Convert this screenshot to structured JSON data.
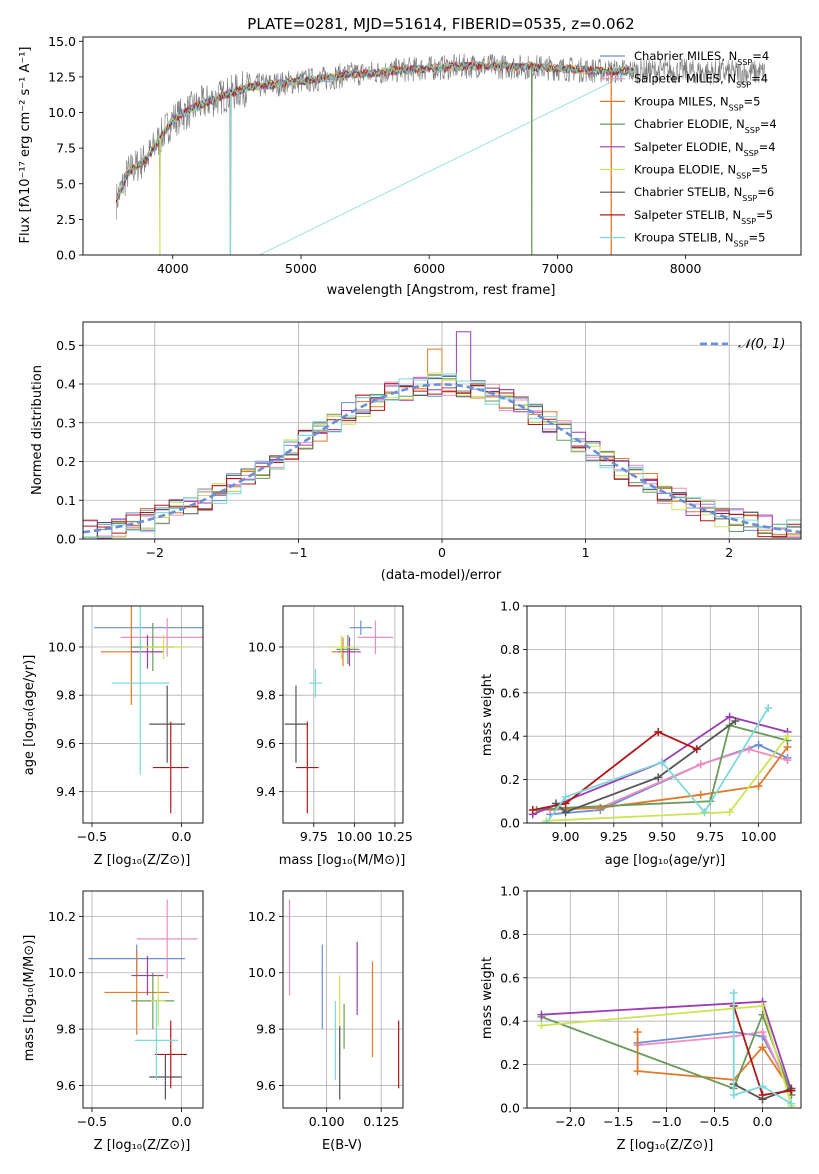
{
  "colors": [
    "#6b8fd6",
    "#f08cc0",
    "#e07a2a",
    "#6b9b5a",
    "#9b3db5",
    "#cce455",
    "#555555",
    "#b01818",
    "#7ed9db"
  ],
  "chart_data": [
    {
      "id": "spectrum",
      "type": "line",
      "title": "PLATE=0281, MJD=51614, FIBERID=0535, z=0.062",
      "xlabel": "wavelength [Angstrom, rest frame]",
      "ylabel": "Flux [fλ10⁻¹⁷ erg cm⁻² s⁻¹ A⁻¹]",
      "xlim": [
        3300,
        8900
      ],
      "ylim": [
        0,
        15.3
      ],
      "xticks": [
        "4000",
        "5000",
        "6000",
        "7000",
        "8000"
      ],
      "yticks": [
        "0.0",
        "2.5",
        "5.0",
        "7.5",
        "10.0",
        "12.5",
        "15.0"
      ],
      "legend_position": "right",
      "legend": [
        {
          "name": "Chabrier MILES",
          "nssp": "4"
        },
        {
          "name": "Salpeter MILES",
          "nssp": "4"
        },
        {
          "name": "Kroupa MILES",
          "nssp": "5"
        },
        {
          "name": "Chabrier ELODIE",
          "nssp": "4"
        },
        {
          "name": "Salpeter ELODIE",
          "nssp": "4"
        },
        {
          "name": "Kroupa ELODIE",
          "nssp": "5"
        },
        {
          "name": "Chabrier STELIB",
          "nssp": "6"
        },
        {
          "name": "Salpeter STELIB",
          "nssp": "5"
        },
        {
          "name": "Kroupa STELIB",
          "nssp": "5"
        }
      ],
      "data_envelope": {
        "x": [
          3560,
          3650,
          3800,
          3900,
          4000,
          4200,
          4400,
          4600,
          4800,
          5000,
          5200,
          5400,
          5600,
          5800,
          6000,
          6200,
          6400,
          6600,
          6800,
          7000,
          7200,
          7400,
          7600,
          7800,
          8000,
          8200,
          8400,
          8600
        ],
        "y": [
          3.8,
          5.8,
          6.8,
          8.2,
          9.5,
          10.5,
          11.2,
          11.8,
          12.0,
          12.2,
          12.4,
          12.7,
          12.8,
          13.0,
          13.1,
          13.2,
          13.3,
          13.2,
          13.2,
          13.1,
          13.0,
          12.9,
          12.9,
          12.9,
          12.9,
          12.8,
          12.8,
          12.8
        ]
      },
      "gray_spectrum_cut": [
        3900,
        4450,
        6800,
        7420
      ],
      "model_start_x": 3560
    },
    {
      "id": "residuals",
      "type": "histogram",
      "xlabel": "(data-model)/error",
      "ylabel": "Normed distribution",
      "xlim": [
        -2.5,
        2.5
      ],
      "ylim": [
        0,
        0.56
      ],
      "xticks": [
        "−2",
        "−1",
        "0",
        "1",
        "2"
      ],
      "yticks": [
        "0.0",
        "0.1",
        "0.2",
        "0.3",
        "0.4",
        "0.5"
      ],
      "legend_position": "top-right",
      "gaussian_label": "𝒩(0, 1)",
      "bin_width": 0.1,
      "noise": [
        0.0,
        0.01,
        -0.01,
        0.02,
        -0.02,
        0.01,
        0.0,
        -0.01,
        0.03,
        -0.02,
        0.02,
        -0.03,
        0.01,
        0.04,
        -0.01,
        0.02,
        -0.02,
        0.05,
        -0.03,
        0.06,
        -0.04,
        0.03,
        0.0,
        -0.02,
        0.02,
        -0.05,
        0.04,
        0.09,
        -0.03,
        0.12
      ]
    },
    {
      "id": "age-vs-Z",
      "type": "errorbar",
      "xlabel": "Z [log₁₀(Z/Z⊙)]",
      "ylabel": "age  [log₁₀(age/yr)]",
      "xlim": [
        -0.55,
        0.12
      ],
      "ylim": [
        9.27,
        10.17
      ],
      "xticks": [
        "−0.5",
        "0.0"
      ],
      "xtick_values": [
        -0.5,
        0.0
      ],
      "yticks": [
        "9.4",
        "9.6",
        "9.8",
        "10.0"
      ],
      "ytick_values": [
        9.4,
        9.6,
        9.8,
        10.0
      ],
      "points": [
        {
          "x": -0.18,
          "xerr": 0.31,
          "y": 10.08,
          "yerr": 0.0
        },
        {
          "x": -0.08,
          "xerr": 0.26,
          "y": 10.04,
          "yerr": 0.08
        },
        {
          "x": -0.28,
          "xerr": 0.17,
          "y": 9.98,
          "yerr": 0.22
        },
        {
          "x": -0.16,
          "xerr": 0.12,
          "y": 10.0,
          "yerr": 0.1
        },
        {
          "x": -0.19,
          "xerr": 0.09,
          "y": 9.98,
          "yerr": 0.07
        },
        {
          "x": -0.1,
          "xerr": 0.12,
          "y": 10.0,
          "yerr": 0.05
        },
        {
          "x": -0.08,
          "xerr": 0.1,
          "y": 9.68,
          "yerr": 0.16
        },
        {
          "x": -0.06,
          "xerr": 0.1,
          "y": 9.5,
          "yerr": 0.19
        },
        {
          "x": -0.23,
          "xerr": 0.16,
          "y": 9.85,
          "yerr": 0.38
        }
      ]
    },
    {
      "id": "age-vs-mass",
      "type": "errorbar",
      "xlabel": "mass [log₁₀(M/M⊙)]",
      "ylabel": "",
      "xlim": [
        9.56,
        10.3
      ],
      "ylim": [
        9.27,
        10.17
      ],
      "xticks": [
        "9.75",
        "10.00",
        "10.25"
      ],
      "xtick_values": [
        9.75,
        10.0,
        10.25
      ],
      "yticks": [
        "9.4",
        "9.6",
        "9.8",
        "10.0"
      ],
      "ytick_values": [
        9.4,
        9.6,
        9.8,
        10.0
      ],
      "points": [
        {
          "x": 10.04,
          "xerr": 0.07,
          "y": 10.08,
          "yerr": 0.03
        },
        {
          "x": 10.13,
          "xerr": 0.11,
          "y": 10.04,
          "yerr": 0.07
        },
        {
          "x": 9.93,
          "xerr": 0.07,
          "y": 9.98,
          "yerr": 0.06
        },
        {
          "x": 9.96,
          "xerr": 0.07,
          "y": 9.99,
          "yerr": 0.06
        },
        {
          "x": 9.97,
          "xerr": 0.07,
          "y": 9.98,
          "yerr": 0.06
        },
        {
          "x": 9.92,
          "xerr": 0.07,
          "y": 10.0,
          "yerr": 0.05
        },
        {
          "x": 9.64,
          "xerr": 0.07,
          "y": 9.68,
          "yerr": 0.16
        },
        {
          "x": 9.71,
          "xerr": 0.07,
          "y": 9.5,
          "yerr": 0.19
        },
        {
          "x": 9.76,
          "xerr": 0.04,
          "y": 9.85,
          "yerr": 0.06
        }
      ]
    },
    {
      "id": "mass-weight-vs-age",
      "type": "line",
      "xlabel": "age  [log₁₀(age/yr)]",
      "ylabel": "mass weight",
      "xlim": [
        8.8,
        10.22
      ],
      "ylim": [
        0,
        1.0
      ],
      "xticks": [
        "9.00",
        "9.25",
        "9.50",
        "9.75",
        "10.00"
      ],
      "xtick_values": [
        9.0,
        9.25,
        9.5,
        9.75,
        10.0
      ],
      "yticks": [
        "0.0",
        "0.2",
        "0.4",
        "0.6",
        "0.8",
        "1.0"
      ],
      "ytick_values": [
        0,
        0.2,
        0.4,
        0.6,
        0.8,
        1.0
      ],
      "series": [
        {
          "x": [
            8.92,
            9.18,
            9.7,
            10.0,
            10.15
          ],
          "y": [
            0.04,
            0.06,
            0.27,
            0.36,
            0.3
          ]
        },
        {
          "x": [
            8.92,
            9.18,
            9.7,
            9.95,
            10.15
          ],
          "y": [
            0.06,
            0.07,
            0.27,
            0.34,
            0.29
          ]
        },
        {
          "x": [
            8.85,
            9.18,
            9.7,
            10.0,
            10.15
          ],
          "y": [
            0.06,
            0.07,
            0.13,
            0.17,
            0.35
          ]
        },
        {
          "x": [
            8.85,
            9.0,
            9.75,
            9.85,
            10.15
          ],
          "y": [
            0.06,
            0.07,
            0.1,
            0.45,
            0.38
          ]
        },
        {
          "x": [
            8.83,
            9.5,
            9.85,
            10.15
          ],
          "y": [
            0.04,
            0.28,
            0.49,
            0.42
          ]
        },
        {
          "x": [
            8.9,
            9.85,
            10.15
          ],
          "y": [
            0.01,
            0.05,
            0.4
          ]
        },
        {
          "x": [
            8.95,
            9.0,
            9.48,
            9.88
          ],
          "y": [
            0.09,
            0.05,
            0.21,
            0.47
          ]
        },
        {
          "x": [
            8.83,
            9.0,
            9.48,
            9.68
          ],
          "y": [
            0.06,
            0.09,
            0.42,
            0.34
          ]
        },
        {
          "x": [
            8.9,
            9.0,
            9.5,
            9.72,
            10.05
          ],
          "y": [
            0.0,
            0.12,
            0.28,
            0.05,
            0.53
          ]
        }
      ]
    },
    {
      "id": "mass-vs-Z",
      "type": "errorbar",
      "xlabel": "Z [log₁₀(Z/Z⊙)]",
      "ylabel": "mass [log₁₀(M/M⊙)]",
      "xlim": [
        -0.55,
        0.12
      ],
      "ylim": [
        9.52,
        10.29
      ],
      "xticks": [
        "−0.5",
        "0.0"
      ],
      "xtick_values": [
        -0.5,
        0.0
      ],
      "yticks": [
        "9.6",
        "9.8",
        "10.0",
        "10.2"
      ],
      "ytick_values": [
        9.6,
        9.8,
        10.0,
        10.2
      ],
      "points": [
        {
          "x": -0.25,
          "xerr": 0.27,
          "y": 10.05,
          "yerr": 0.05
        },
        {
          "x": -0.08,
          "xerr": 0.17,
          "y": 10.12,
          "yerr": 0.14
        },
        {
          "x": -0.25,
          "xerr": 0.18,
          "y": 9.93,
          "yerr": 0.15
        },
        {
          "x": -0.16,
          "xerr": 0.12,
          "y": 9.9,
          "yerr": 0.1
        },
        {
          "x": -0.19,
          "xerr": 0.09,
          "y": 9.99,
          "yerr": 0.07
        },
        {
          "x": -0.13,
          "xerr": 0.04,
          "y": 9.9,
          "yerr": 0.09
        },
        {
          "x": -0.09,
          "xerr": 0.09,
          "y": 9.63,
          "yerr": 0.08
        },
        {
          "x": -0.06,
          "xerr": 0.09,
          "y": 9.71,
          "yerr": 0.12
        },
        {
          "x": -0.14,
          "xerr": 0.12,
          "y": 9.76,
          "yerr": 0.14
        }
      ]
    },
    {
      "id": "mass-vs-EBV",
      "type": "errorbar",
      "xlabel": "E(B-V)",
      "ylabel": "",
      "xlim": [
        0.08,
        0.135
      ],
      "ylim": [
        9.52,
        10.29
      ],
      "xticks": [
        "0.100",
        "0.125"
      ],
      "xtick_values": [
        0.1,
        0.125
      ],
      "yticks": [
        "9.6",
        "9.8",
        "10.0",
        "10.2"
      ],
      "ytick_values": [
        9.6,
        9.8,
        10.0,
        10.2
      ],
      "points": [
        {
          "x": 0.098,
          "xerr": 0,
          "y": 9.95,
          "yerr": 0.15
        },
        {
          "x": 0.083,
          "xerr": 0,
          "y": 10.09,
          "yerr": 0.17
        },
        {
          "x": 0.121,
          "xerr": 0,
          "y": 9.87,
          "yerr": 0.17
        },
        {
          "x": 0.108,
          "xerr": 0,
          "y": 9.81,
          "yerr": 0.08
        },
        {
          "x": 0.114,
          "xerr": 0,
          "y": 9.98,
          "yerr": 0.13
        },
        {
          "x": 0.106,
          "xerr": 0,
          "y": 9.85,
          "yerr": 0.14
        },
        {
          "x": 0.106,
          "xerr": 0,
          "y": 9.68,
          "yerr": 0.13
        },
        {
          "x": 0.133,
          "xerr": 0,
          "y": 9.71,
          "yerr": 0.12
        },
        {
          "x": 0.104,
          "xerr": 0,
          "y": 9.76,
          "yerr": 0.14
        }
      ]
    },
    {
      "id": "mass-weight-vs-Z",
      "type": "line",
      "xlabel": "Z [log₁₀(Z/Z⊙)]",
      "ylabel": "mass weight",
      "xlim": [
        -2.45,
        0.4
      ],
      "ylim": [
        0,
        1.0
      ],
      "xticks": [
        "−2.0",
        "−1.5",
        "−1.0",
        "−0.5",
        "0.0"
      ],
      "xtick_values": [
        -2.0,
        -1.5,
        -1.0,
        -0.5,
        0.0
      ],
      "yticks": [
        "0.0",
        "0.2",
        "0.4",
        "0.6",
        "0.8",
        "1.0"
      ],
      "ytick_values": [
        0,
        0.2,
        0.4,
        0.6,
        0.8,
        1.0
      ],
      "series": [
        {
          "x": [
            -1.3,
            -0.3,
            0.0,
            0.3
          ],
          "y": [
            0.3,
            0.35,
            0.33,
            0.08
          ]
        },
        {
          "x": [
            -1.3,
            -0.3,
            0.0,
            0.3
          ],
          "y": [
            0.29,
            0.33,
            0.35,
            0.06
          ]
        },
        {
          "x": [
            -1.3,
            -1.3,
            -0.3,
            0.0,
            0.3
          ],
          "y": [
            0.35,
            0.17,
            0.13,
            0.28,
            0.08
          ]
        },
        {
          "x": [
            -2.3,
            -0.3,
            0.0,
            0.3
          ],
          "y": [
            0.42,
            0.09,
            0.43,
            0.06
          ]
        },
        {
          "x": [
            -2.3,
            0.0,
            0.3
          ],
          "y": [
            0.43,
            0.49,
            0.08
          ]
        },
        {
          "x": [
            -2.3,
            0.0,
            0.3
          ],
          "y": [
            0.38,
            0.47,
            0.01
          ]
        },
        {
          "x": [
            -0.3,
            0.0,
            0.3
          ],
          "y": [
            0.11,
            0.04,
            0.09
          ]
        },
        {
          "x": [
            -0.3,
            0.0,
            0.3
          ],
          "y": [
            0.47,
            0.06,
            0.08
          ]
        },
        {
          "x": [
            -0.3,
            -0.3,
            0.0,
            0.3
          ],
          "y": [
            0.53,
            0.06,
            0.1,
            0.02
          ]
        }
      ]
    }
  ]
}
